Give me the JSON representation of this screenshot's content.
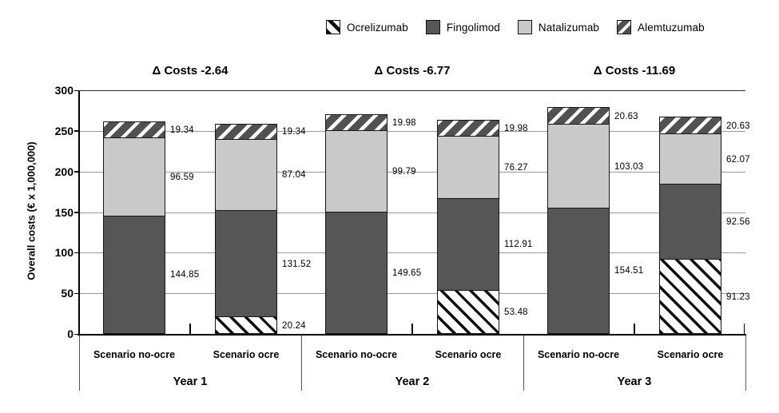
{
  "legend": {
    "items": [
      {
        "series": "ocrelizumab",
        "label": "Ocrelizumab",
        "swatch": "black-backslash-hatch-on-white"
      },
      {
        "series": "fingolimod",
        "label": "Fingolimod",
        "swatch": "solid-dark-gray"
      },
      {
        "series": "natalizumab",
        "label": "Natalizumab",
        "swatch": "solid-light-gray"
      },
      {
        "series": "alemtuzumab",
        "label": "Alemtuzumab",
        "swatch": "white-slash-hatch-on-dark-gray"
      }
    ]
  },
  "colors": {
    "fingolimod": "#565656",
    "natalizumab": "#c9c9c9",
    "alemtuzumab_base": "#515151",
    "alemtuzumab_stripe": "#ffffff",
    "ocrelizumab_base": "#ffffff",
    "ocrelizumab_stripe": "#101010",
    "gridline": "#9a9a9a",
    "axis": "#000000",
    "background": "#ffffff"
  },
  "chart_data": {
    "type": "bar",
    "stacked": true,
    "legend_position": "top",
    "grid": "horizontal",
    "ylabel": "Overall costs (€ x 1,000,000)",
    "ylim": [
      0,
      300
    ],
    "yticks": [
      0,
      50,
      100,
      150,
      200,
      250,
      300
    ],
    "series_bottom_to_top": [
      "ocrelizumab",
      "fingolimod",
      "natalizumab",
      "alemtuzumab"
    ],
    "groups": [
      {
        "label": "Year 1",
        "delta_label": "Δ Costs -2.64",
        "bars": [
          {
            "label": "Scenario no-ocre",
            "segments": [
              {
                "series": "fingolimod",
                "value": 144.85,
                "value_label": "144.85"
              },
              {
                "series": "natalizumab",
                "value": 96.59,
                "value_label": "96.59"
              },
              {
                "series": "alemtuzumab",
                "value": 19.34,
                "value_label": "19.34"
              }
            ]
          },
          {
            "label": "Scenario ocre",
            "segments": [
              {
                "series": "ocrelizumab",
                "value": 20.24,
                "value_label": "20.24"
              },
              {
                "series": "fingolimod",
                "value": 131.52,
                "value_label": "131.52"
              },
              {
                "series": "natalizumab",
                "value": 87.04,
                "value_label": "87.04"
              },
              {
                "series": "alemtuzumab",
                "value": 19.34,
                "value_label": "19.34"
              }
            ]
          }
        ]
      },
      {
        "label": "Year 2",
        "delta_label": "Δ Costs -6.77",
        "bars": [
          {
            "label": "Scenario no-ocre",
            "segments": [
              {
                "series": "fingolimod",
                "value": 149.65,
                "value_label": "149.65"
              },
              {
                "series": "natalizumab",
                "value": 99.79,
                "value_label": "99.79"
              },
              {
                "series": "alemtuzumab",
                "value": 19.98,
                "value_label": "19.98"
              }
            ]
          },
          {
            "label": "Scenario ocre",
            "segments": [
              {
                "series": "ocrelizumab",
                "value": 53.48,
                "value_label": "53.48"
              },
              {
                "series": "fingolimod",
                "value": 112.91,
                "value_label": "112.91"
              },
              {
                "series": "natalizumab",
                "value": 76.27,
                "value_label": "76.27"
              },
              {
                "series": "alemtuzumab",
                "value": 19.98,
                "value_label": "19.98"
              }
            ]
          }
        ]
      },
      {
        "label": "Year 3",
        "delta_label": "Δ Costs -11.69",
        "bars": [
          {
            "label": "Scenario no-ocre",
            "segments": [
              {
                "series": "fingolimod",
                "value": 154.51,
                "value_label": "154.51"
              },
              {
                "series": "natalizumab",
                "value": 103.03,
                "value_label": "103.03"
              },
              {
                "series": "alemtuzumab",
                "value": 20.63,
                "value_label": "20.63"
              }
            ]
          },
          {
            "label": "Scenario ocre",
            "segments": [
              {
                "series": "ocrelizumab",
                "value": 91.23,
                "value_label": "91.23"
              },
              {
                "series": "fingolimod",
                "value": 92.56,
                "value_label": "92.56"
              },
              {
                "series": "natalizumab",
                "value": 62.07,
                "value_label": "62.07"
              },
              {
                "series": "alemtuzumab",
                "value": 20.63,
                "value_label": "20.63"
              }
            ]
          }
        ]
      }
    ]
  }
}
